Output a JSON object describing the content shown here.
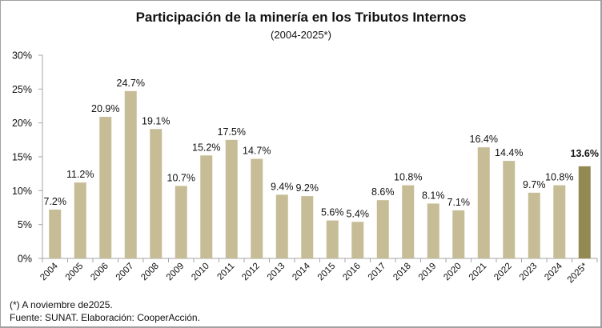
{
  "chart_data": {
    "type": "bar",
    "title": "Participación de la minería en los Tributos Internos",
    "subtitle": "(2004-2025*)",
    "xlabel": "",
    "ylabel": "",
    "ylim": [
      0,
      30
    ],
    "yticks": [
      "0%",
      "5%",
      "10%",
      "15%",
      "20%",
      "25%",
      "30%"
    ],
    "ytick_values": [
      0,
      5,
      10,
      15,
      20,
      25,
      30
    ],
    "grid": false,
    "categories": [
      "2004",
      "2005",
      "2006",
      "2007",
      "2008",
      "2009",
      "2010",
      "2011",
      "2012",
      "2013",
      "2014",
      "2015",
      "2016",
      "2017",
      "2018",
      "2019",
      "2020",
      "2021",
      "2022",
      "2023",
      "2024",
      "2025*"
    ],
    "values": [
      7.2,
      11.2,
      20.9,
      24.7,
      19.1,
      10.7,
      15.2,
      17.5,
      14.7,
      9.4,
      9.2,
      5.6,
      5.4,
      8.6,
      10.8,
      8.1,
      7.1,
      16.4,
      14.4,
      9.7,
      10.8,
      13.6
    ],
    "labels": [
      "7.2%",
      "11.2%",
      "20.9%",
      "24.7%",
      "19.1%",
      "10.7%",
      "15.2%",
      "17.5%",
      "14.7%",
      "9.4%",
      "9.2%",
      "5.6%",
      "5.4%",
      "8.6%",
      "10.8%",
      "8.1%",
      "7.1%",
      "16.4%",
      "14.4%",
      "9.7%",
      "10.8%",
      "13.6%"
    ],
    "highlight_index": 21,
    "colors": {
      "bar": "#c6bd97",
      "highlight": "#938953",
      "axis": "#a6a6a6",
      "text": "#111111"
    }
  },
  "footnotes": {
    "note": "(*) A noviembre de2025.",
    "source": "Fuente: SUNAT. Elaboración: CooperAcción."
  }
}
